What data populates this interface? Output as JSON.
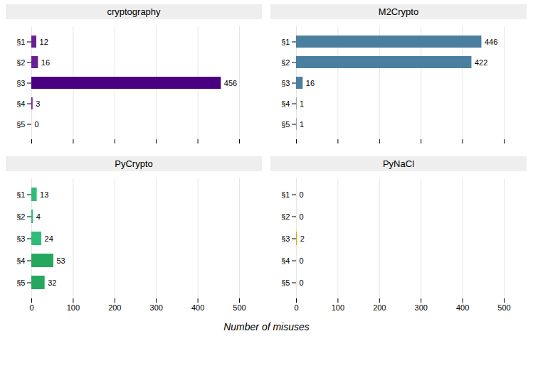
{
  "chart_data": [
    {
      "type": "bar",
      "title": "cryptography",
      "orientation": "horizontal",
      "categories": [
        "§1",
        "§2",
        "§3",
        "§4",
        "§5"
      ],
      "values": [
        12,
        16,
        456,
        3,
        0
      ],
      "colors": [
        "#6a1f96",
        "#6a1f96",
        "#4b0082",
        "#6a1f96",
        "#6a1f96"
      ],
      "xlim": [
        0,
        500
      ],
      "xticks": [
        0,
        100,
        200,
        300,
        400,
        500
      ],
      "grid": true,
      "data_labels": true,
      "tick_labels": "y"
    },
    {
      "type": "bar",
      "title": "M2Crypto",
      "orientation": "horizontal",
      "categories": [
        "§1",
        "§2",
        "§3",
        "§4",
        "§5"
      ],
      "values": [
        446,
        422,
        16,
        1,
        1
      ],
      "colors": [
        "#4a7fa0",
        "#4a7fa0",
        "#4a7fa0",
        "#4a7fa0",
        "#4a7fa0"
      ],
      "xlim": [
        0,
        500
      ],
      "xticks": [
        0,
        100,
        200,
        300,
        400,
        500
      ],
      "grid": true,
      "data_labels": true,
      "tick_labels": "y"
    },
    {
      "type": "bar",
      "title": "PyCrypto",
      "orientation": "horizontal",
      "categories": [
        "§1",
        "§2",
        "§3",
        "§4",
        "§5"
      ],
      "values": [
        13,
        4,
        24,
        53,
        32
      ],
      "colors": [
        "#2ebc78",
        "#2ebc78",
        "#2ebc78",
        "#25a85e",
        "#25a85e"
      ],
      "xlim": [
        0,
        500
      ],
      "xticks": [
        0,
        100,
        200,
        300,
        400,
        500
      ],
      "xlabel": "Number of misuses",
      "grid": true,
      "data_labels": true,
      "tick_labels": true
    },
    {
      "type": "bar",
      "title": "PyNaCl",
      "orientation": "horizontal",
      "categories": [
        "§1",
        "§2",
        "§3",
        "§4",
        "§5"
      ],
      "values": [
        0,
        0,
        2,
        0,
        0
      ],
      "colors": [
        "#999999",
        "#999999",
        "#c8b400",
        "#999999",
        "#999999"
      ],
      "xlim": [
        0,
        500
      ],
      "xticks": [
        0,
        100,
        200,
        300,
        400,
        500
      ],
      "grid": true,
      "data_labels": true,
      "tick_labels": true
    }
  ]
}
